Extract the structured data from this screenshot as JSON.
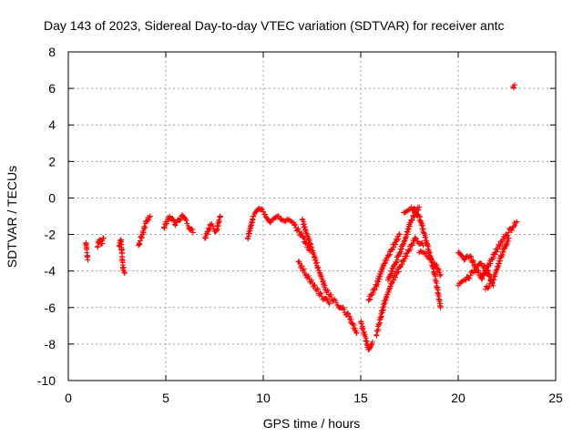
{
  "chart_data": {
    "type": "scatter",
    "title": "Day 143 of 2023, Sidereal Day-to-day VTEC variation (SDTVAR) for receiver antc",
    "xlabel": "GPS time / hours",
    "ylabel": "SDTVAR / TECUs",
    "xlim": [
      0,
      25
    ],
    "ylim": [
      -10,
      8
    ],
    "xticks": [
      0,
      5,
      10,
      15,
      20,
      25
    ],
    "yticks": [
      -10,
      -8,
      -6,
      -4,
      -2,
      0,
      2,
      4,
      6,
      8
    ],
    "grid": true,
    "marker": "+",
    "color": "#ff0000",
    "series": [
      {
        "name": "SDTVAR",
        "segments": [
          {
            "x": [
              0.9,
              0.95,
              1.0
            ],
            "y": [
              -2.5,
              -3.0,
              -3.4
            ]
          },
          {
            "x": [
              1.5,
              1.6,
              1.7,
              1.8
            ],
            "y": [
              -2.7,
              -2.3,
              -2.5,
              -2.2
            ]
          },
          {
            "x": [
              2.6,
              2.7,
              2.8,
              2.9
            ],
            "y": [
              -2.6,
              -2.3,
              -3.8,
              -4.1
            ]
          },
          {
            "x": [
              3.6,
              3.8,
              4.0,
              4.2
            ],
            "y": [
              -2.6,
              -2.0,
              -1.3,
              -1.0
            ]
          },
          {
            "x": [
              4.9,
              5.2,
              5.5,
              5.8,
              6.1,
              6.4
            ],
            "y": [
              -1.6,
              -1.0,
              -1.5,
              -1.0,
              -1.4,
              -1.9
            ]
          },
          {
            "x": [
              7.0,
              7.3,
              7.6,
              7.8
            ],
            "y": [
              -2.2,
              -1.5,
              -1.8,
              -1.0
            ]
          },
          {
            "x": [
              9.2,
              9.5,
              9.8,
              10.1,
              10.4,
              10.8,
              11.2,
              11.6,
              12.0,
              12.4
            ],
            "y": [
              -2.2,
              -1.0,
              -0.6,
              -0.9,
              -1.3,
              -1.0,
              -1.2,
              -1.5,
              -2.1,
              -2.9
            ]
          },
          {
            "x": [
              12.0,
              12.4,
              12.8,
              13.2,
              13.6,
              14.0,
              14.4,
              14.8
            ],
            "y": [
              -1.2,
              -2.5,
              -3.8,
              -5.0,
              -5.6,
              -6.0,
              -6.5,
              -7.4
            ]
          },
          {
            "x": [
              11.8,
              12.2,
              12.6,
              13.0,
              13.4
            ],
            "y": [
              -3.5,
              -4.2,
              -4.8,
              -5.4,
              -5.8
            ]
          },
          {
            "x": [
              15.0,
              15.2,
              15.4,
              15.6
            ],
            "y": [
              -6.8,
              -7.5,
              -8.3,
              -7.9
            ]
          },
          {
            "x": [
              15.4,
              15.8,
              16.2,
              16.6,
              17.0
            ],
            "y": [
              -5.6,
              -4.8,
              -3.6,
              -2.8,
              -2.0
            ]
          },
          {
            "x": [
              16.4,
              16.8,
              17.2,
              17.6,
              18.0
            ],
            "y": [
              -4.5,
              -3.5,
              -2.5,
              -1.2,
              -0.5
            ]
          },
          {
            "x": [
              15.8,
              16.2,
              16.6,
              17.0,
              17.4,
              17.8,
              18.2
            ],
            "y": [
              -7.5,
              -5.8,
              -4.6,
              -3.8,
              -3.0,
              -2.2,
              -2.6
            ]
          },
          {
            "x": [
              17.2,
              17.6,
              18.0,
              18.4,
              18.8,
              19.1
            ],
            "y": [
              -0.8,
              -0.5,
              -1.0,
              -2.5,
              -4.2,
              -6.0
            ]
          },
          {
            "x": [
              18.0,
              18.4,
              18.8,
              19.1
            ],
            "y": [
              -3.0,
              -3.2,
              -3.6,
              -4.2
            ]
          },
          {
            "x": [
              20.0,
              20.3,
              20.6,
              20.9,
              21.2,
              21.5,
              21.8
            ],
            "y": [
              -3.0,
              -3.4,
              -3.2,
              -3.8,
              -4.4,
              -4.0,
              -4.8
            ]
          },
          {
            "x": [
              20.0,
              20.4,
              20.8,
              21.2,
              21.6
            ],
            "y": [
              -4.8,
              -4.5,
              -4.0,
              -3.6,
              -4.2
            ]
          },
          {
            "x": [
              21.2,
              21.6,
              22.0,
              22.4,
              22.8,
              23.0
            ],
            "y": [
              -4.4,
              -3.6,
              -2.8,
              -2.1,
              -1.6,
              -1.3
            ]
          },
          {
            "x": [
              21.4,
              21.8,
              22.2,
              22.6
            ],
            "y": [
              -5.0,
              -4.5,
              -3.2,
              -2.2
            ]
          },
          {
            "x": [
              22.8,
              22.9
            ],
            "y": [
              6.1,
              6.2
            ]
          }
        ]
      }
    ]
  }
}
